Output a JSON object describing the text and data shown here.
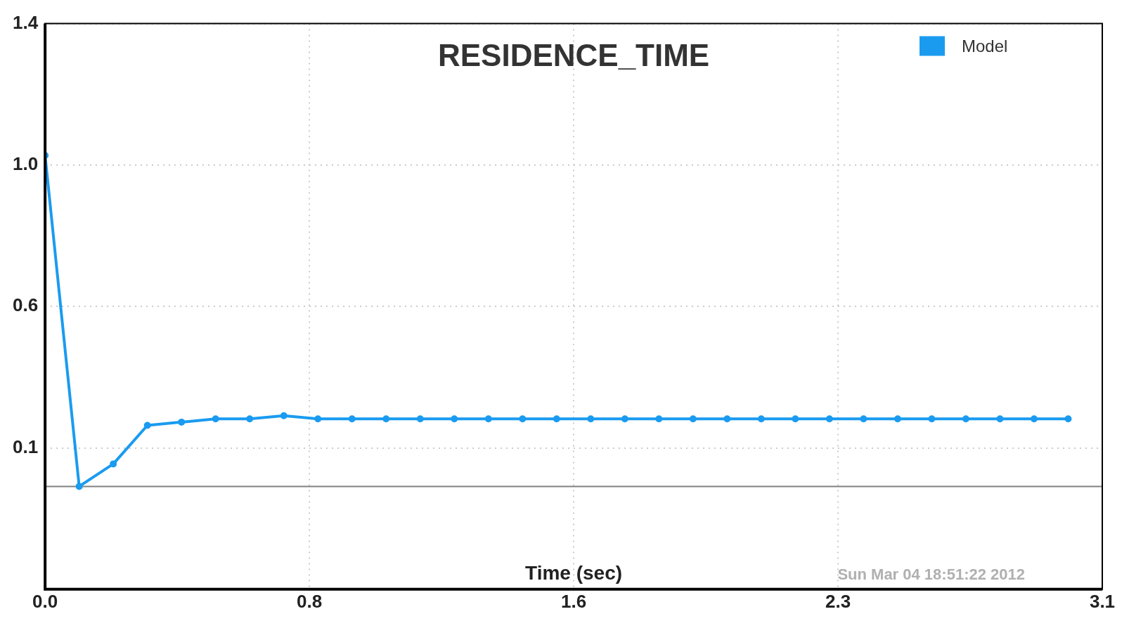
{
  "chart_data": {
    "type": "line",
    "title": "RESIDENCE_TIME",
    "xlabel": "Time (sec)",
    "annotations": [
      "Sun Mar 04 18:51:22 2012"
    ],
    "x": [
      0,
      0.1,
      0.2,
      0.3,
      0.4,
      0.5,
      0.6,
      0.7,
      0.8,
      0.9,
      1.0,
      1.1,
      1.2,
      1.3,
      1.4,
      1.5,
      1.6,
      1.7,
      1.8,
      1.9,
      2.0,
      2.1,
      2.2,
      2.3,
      2.4,
      2.5,
      2.6,
      2.7,
      2.8,
      2.9,
      3.0
    ],
    "series": [
      {
        "name": "Model",
        "color": "#1a9bf0",
        "values": [
          1.03,
          0.0,
          0.07,
          0.19,
          0.2,
          0.21,
          0.21,
          0.22,
          0.21,
          0.21,
          0.21,
          0.21,
          0.21,
          0.21,
          0.21,
          0.21,
          0.21,
          0.21,
          0.21,
          0.21,
          0.21,
          0.21,
          0.21,
          0.21,
          0.21,
          0.21,
          0.21,
          0.21,
          0.21,
          0.21,
          0.21
        ]
      }
    ],
    "xlim": [
      0,
      3.1
    ],
    "xticks": [
      {
        "value": 0,
        "label": "0.0"
      },
      {
        "value": 0.775,
        "label": "0.8"
      },
      {
        "value": 1.55,
        "label": "1.6"
      },
      {
        "value": 2.325,
        "label": "2.3"
      },
      {
        "value": 3.1,
        "label": "3.1"
      }
    ],
    "ylim": [
      -0.32,
      1.44
    ],
    "yticks": [
      {
        "value": -0.32,
        "label": null
      },
      {
        "value": 0.12,
        "label": "0.1"
      },
      {
        "value": 0.56,
        "label": "0.6"
      },
      {
        "value": 1.0,
        "label": "1.0"
      },
      {
        "value": 1.44,
        "label": "1.4"
      }
    ],
    "ref_lines": [
      {
        "axis": "y",
        "value": 0,
        "color": "#808080"
      }
    ],
    "grid": true,
    "legend": "top right",
    "marker": "circle",
    "line_style": "solid"
  }
}
